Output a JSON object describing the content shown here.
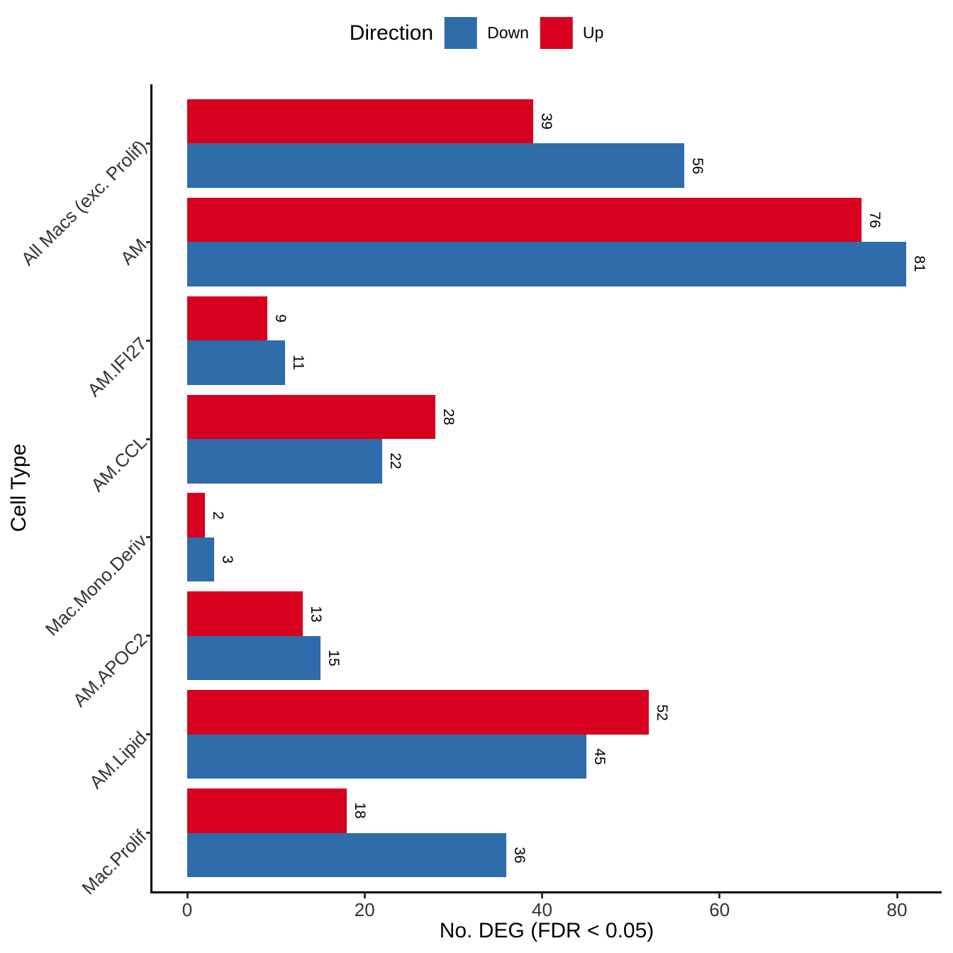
{
  "legend": {
    "title": "Direction",
    "items": [
      {
        "label": "Down",
        "color": "#2F6CAA"
      },
      {
        "label": "Up",
        "color": "#D7001E"
      }
    ]
  },
  "axes": {
    "x_title": "No. DEG (FDR < 0.05)",
    "y_title": "Cell Type"
  },
  "chart_data": {
    "type": "bar",
    "orientation": "horizontal",
    "title": "",
    "xlabel": "No. DEG (FDR < 0.05)",
    "ylabel": "Cell Type",
    "categories": [
      "All Macs (exc. Prolif)",
      "AM",
      "AM.IFI27",
      "AM.CCL",
      "Mac.Mono.Deriv",
      "AM.APOC2",
      "AM.Lipid",
      "Mac.Prolif"
    ],
    "series": [
      {
        "name": "Up",
        "color": "#D7001E",
        "values": [
          39,
          76,
          9,
          28,
          2,
          13,
          52,
          18
        ]
      },
      {
        "name": "Down",
        "color": "#2F6CAA",
        "values": [
          56,
          81,
          11,
          22,
          3,
          15,
          45,
          36
        ]
      }
    ],
    "x_ticks": [
      0,
      20,
      40,
      60,
      80
    ],
    "xlim": [
      0,
      85
    ],
    "bar_value_labels": true,
    "grid": false,
    "legend_position": "top"
  }
}
